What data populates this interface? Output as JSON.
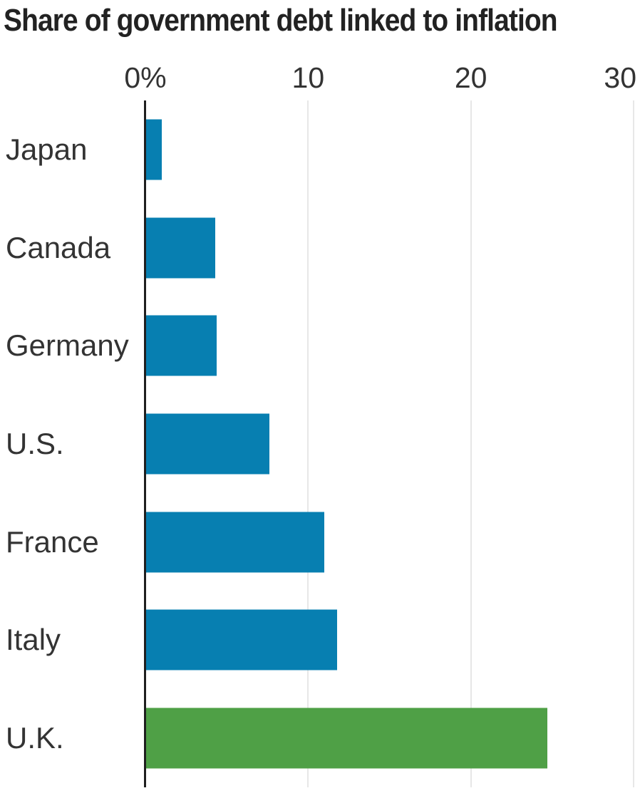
{
  "chart_data": {
    "type": "bar",
    "orientation": "horizontal",
    "title": "Share of government debt linked to inflation",
    "categories": [
      "Japan",
      "Canada",
      "Germany",
      "U.S.",
      "France",
      "Italy",
      "U.K."
    ],
    "values": [
      1,
      4.3,
      4.4,
      7.6,
      11,
      11.8,
      24.7
    ],
    "unit": "%",
    "xlim": [
      0,
      30
    ],
    "xticks": [
      {
        "value": 0,
        "label": "0%"
      },
      {
        "value": 10,
        "label": "10"
      },
      {
        "value": 20,
        "label": "20"
      },
      {
        "value": 30,
        "label": "30"
      }
    ],
    "grid": "vertical-gridlines-at-ticks",
    "legend": "none",
    "bar_colors": [
      "#077FB1",
      "#077FB1",
      "#077FB1",
      "#077FB1",
      "#077FB1",
      "#077FB1",
      "#4FA046"
    ],
    "highlight": {
      "category": "U.K.",
      "color": "#4FA046"
    },
    "colors": {
      "bar": "#077FB1",
      "bar_highlight": "#4FA046",
      "axis_line": "#1f1f1f",
      "gridline": "#e7e7e7",
      "title_text": "#222222",
      "label_text": "#333333",
      "background": "#ffffff"
    }
  }
}
